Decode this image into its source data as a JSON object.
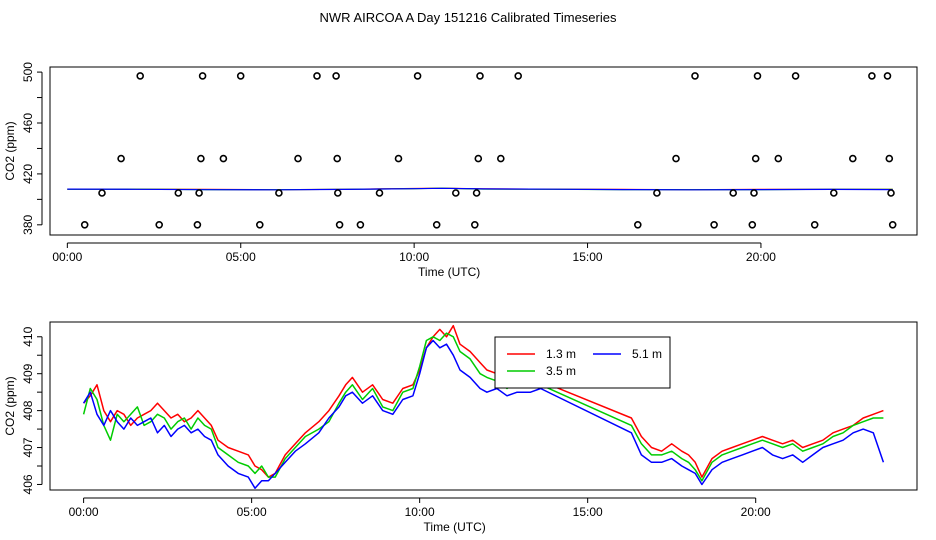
{
  "title": "NWR AIRCOA A  Day 151216  Calibrated Timeseries",
  "chart_data": [
    {
      "type": "scatter",
      "xlabel": "Time (UTC)",
      "ylabel": "CO2 (ppm)",
      "xlim": [
        -0.5,
        24.5
      ],
      "ylim": [
        372,
        504
      ],
      "x_ticks": [
        0,
        5,
        10,
        15,
        20
      ],
      "x_tick_labels": [
        "00:00",
        "05:00",
        "10:00",
        "15:00",
        "20:00"
      ],
      "y_ticks": [
        380,
        420,
        460,
        500
      ],
      "y_tick_labels": [
        "380",
        "420",
        "460",
        "500"
      ],
      "grid": false,
      "colors": {
        "1.3 m": "#ff0000",
        "3.5 m": "#00cc00",
        "5.1 m": "#0000ff",
        "points": "#000000"
      },
      "points": [
        {
          "x": 0.5,
          "y": 380
        },
        {
          "x": 1.0,
          "y": 405
        },
        {
          "x": 1.55,
          "y": 432
        },
        {
          "x": 2.1,
          "y": 497
        },
        {
          "x": 2.65,
          "y": 380
        },
        {
          "x": 3.2,
          "y": 405
        },
        {
          "x": 3.75,
          "y": 380
        },
        {
          "x": 3.8,
          "y": 405
        },
        {
          "x": 3.85,
          "y": 432
        },
        {
          "x": 3.9,
          "y": 497
        },
        {
          "x": 4.5,
          "y": 432
        },
        {
          "x": 5.0,
          "y": 497
        },
        {
          "x": 5.55,
          "y": 380
        },
        {
          "x": 6.1,
          "y": 405
        },
        {
          "x": 6.65,
          "y": 432
        },
        {
          "x": 7.2,
          "y": 497
        },
        {
          "x": 7.75,
          "y": 497
        },
        {
          "x": 7.78,
          "y": 432
        },
        {
          "x": 7.8,
          "y": 405
        },
        {
          "x": 7.85,
          "y": 380
        },
        {
          "x": 8.45,
          "y": 380
        },
        {
          "x": 9.0,
          "y": 405
        },
        {
          "x": 9.55,
          "y": 432
        },
        {
          "x": 10.1,
          "y": 497
        },
        {
          "x": 10.65,
          "y": 380
        },
        {
          "x": 11.2,
          "y": 405
        },
        {
          "x": 11.75,
          "y": 380
        },
        {
          "x": 11.8,
          "y": 405
        },
        {
          "x": 11.85,
          "y": 432
        },
        {
          "x": 11.9,
          "y": 497
        },
        {
          "x": 12.5,
          "y": 432
        },
        {
          "x": 13.0,
          "y": 497
        },
        {
          "x": 16.45,
          "y": 380
        },
        {
          "x": 17.0,
          "y": 405
        },
        {
          "x": 17.55,
          "y": 432
        },
        {
          "x": 18.1,
          "y": 497
        },
        {
          "x": 18.65,
          "y": 380
        },
        {
          "x": 19.2,
          "y": 405
        },
        {
          "x": 19.75,
          "y": 380
        },
        {
          "x": 19.8,
          "y": 405
        },
        {
          "x": 19.85,
          "y": 432
        },
        {
          "x": 19.9,
          "y": 497
        },
        {
          "x": 20.5,
          "y": 432
        },
        {
          "x": 21.0,
          "y": 497
        },
        {
          "x": 21.55,
          "y": 380
        },
        {
          "x": 22.1,
          "y": 405
        },
        {
          "x": 22.65,
          "y": 432
        },
        {
          "x": 23.2,
          "y": 497
        },
        {
          "x": 23.65,
          "y": 497
        },
        {
          "x": 23.7,
          "y": 432
        },
        {
          "x": 23.75,
          "y": 405
        },
        {
          "x": 23.8,
          "y": 380
        }
      ],
      "series": [
        {
          "name": "1.3 m",
          "x": [
            0,
            2,
            4,
            6,
            8,
            10,
            10.8,
            12,
            14,
            16,
            18,
            20,
            22,
            23.8
          ],
          "values": [
            408,
            408,
            407.8,
            407.6,
            407.9,
            408.5,
            408.8,
            408.2,
            408,
            407.8,
            407.6,
            407.8,
            407.9,
            407.8
          ]
        },
        {
          "name": "3.5 m",
          "x": [
            0,
            2,
            4,
            6,
            8,
            10,
            10.8,
            12,
            14,
            16,
            18,
            20,
            22,
            23.8
          ],
          "values": [
            407.9,
            408,
            407.7,
            407.6,
            407.9,
            408.4,
            408.8,
            408.1,
            407.9,
            407.7,
            407.6,
            407.7,
            407.9,
            407.8
          ]
        },
        {
          "name": "5.1 m",
          "x": [
            0,
            2,
            4,
            6,
            8,
            10,
            10.8,
            12,
            14,
            16,
            18,
            20,
            22,
            23.8
          ],
          "values": [
            408.1,
            407.9,
            407.6,
            407.5,
            407.8,
            408.4,
            408.7,
            408.2,
            408,
            407.7,
            407.5,
            407.7,
            407.8,
            407.7
          ]
        }
      ]
    },
    {
      "type": "line",
      "xlabel": "Time (UTC)",
      "ylabel": "CO2 (ppm)",
      "xlim": [
        -1,
        24.8
      ],
      "ylim": [
        405.85,
        410.4
      ],
      "x_ticks": [
        0,
        5,
        10,
        15,
        20
      ],
      "x_tick_labels": [
        "00:00",
        "05:00",
        "10:00",
        "15:00",
        "20:00"
      ],
      "y_ticks": [
        406,
        407,
        408,
        409,
        410
      ],
      "y_tick_labels": [
        "406",
        "407",
        "408",
        "409",
        "410"
      ],
      "grid": false,
      "legend": {
        "placement": "top-center",
        "entries": [
          "1.3 m",
          "3.5 m",
          "5.1 m"
        ]
      },
      "series": [
        {
          "name": "1.3 m",
          "color": "#ff0000",
          "x": [
            0,
            0.2,
            0.4,
            0.6,
            0.8,
            1.0,
            1.2,
            1.4,
            1.6,
            1.8,
            2.0,
            2.2,
            2.4,
            2.6,
            2.8,
            3.0,
            3.2,
            3.4,
            3.6,
            3.8,
            4.0,
            4.3,
            4.6,
            4.9,
            5.1,
            5.3,
            5.5,
            5.7,
            6.0,
            6.3,
            6.6,
            7.0,
            7.3,
            7.6,
            7.8,
            8.0,
            8.3,
            8.6,
            8.9,
            9.2,
            9.5,
            9.8,
            10.0,
            10.2,
            10.4,
            10.6,
            10.8,
            11.0,
            11.2,
            11.5,
            11.8,
            12.0,
            12.3,
            12.6,
            12.9,
            13.3,
            13.6,
            16.3,
            16.6,
            16.9,
            17.2,
            17.5,
            17.8,
            18.0,
            18.2,
            18.4,
            18.7,
            19.0,
            19.3,
            19.6,
            19.9,
            20.2,
            20.5,
            20.8,
            21.1,
            21.4,
            21.7,
            22.0,
            22.3,
            22.6,
            22.9,
            23.2,
            23.5,
            23.8
          ],
          "values": [
            408.2,
            408.4,
            408.7,
            408.0,
            407.7,
            408.0,
            407.9,
            407.6,
            407.8,
            407.9,
            408.0,
            408.2,
            408.0,
            407.8,
            407.9,
            407.7,
            407.8,
            408.0,
            407.8,
            407.6,
            407.2,
            407.0,
            406.9,
            406.8,
            406.5,
            406.4,
            406.2,
            406.3,
            406.8,
            407.1,
            407.4,
            407.7,
            408.0,
            408.4,
            408.7,
            408.9,
            408.5,
            408.7,
            408.3,
            408.2,
            408.6,
            408.7,
            409.1,
            409.7,
            410.0,
            410.2,
            410.0,
            410.3,
            409.8,
            409.6,
            409.3,
            409.1,
            409.0,
            408.8,
            408.9,
            408.8,
            408.8,
            407.8,
            407.3,
            407.0,
            406.9,
            407.1,
            406.9,
            406.8,
            406.6,
            406.2,
            406.7,
            406.9,
            407.0,
            407.1,
            407.2,
            407.3,
            407.2,
            407.1,
            407.2,
            407.0,
            407.1,
            407.2,
            407.4,
            407.5,
            407.6,
            407.8,
            407.9,
            408.0
          ]
        },
        {
          "name": "3.5 m",
          "color": "#00cc00",
          "x": [
            0,
            0.2,
            0.4,
            0.6,
            0.8,
            1.0,
            1.2,
            1.4,
            1.6,
            1.8,
            2.0,
            2.2,
            2.4,
            2.6,
            2.8,
            3.0,
            3.2,
            3.4,
            3.6,
            3.8,
            4.0,
            4.3,
            4.6,
            4.9,
            5.1,
            5.3,
            5.5,
            5.7,
            6.0,
            6.3,
            6.6,
            7.0,
            7.3,
            7.6,
            7.8,
            8.0,
            8.3,
            8.6,
            8.9,
            9.2,
            9.5,
            9.8,
            10.0,
            10.2,
            10.4,
            10.6,
            10.8,
            11.0,
            11.2,
            11.5,
            11.8,
            12.0,
            12.3,
            12.6,
            12.9,
            13.3,
            13.6,
            16.3,
            16.6,
            16.9,
            17.2,
            17.5,
            17.8,
            18.0,
            18.2,
            18.4,
            18.7,
            19.0,
            19.3,
            19.6,
            19.9,
            20.2,
            20.5,
            20.8,
            21.1,
            21.4,
            21.7,
            22.0,
            22.3,
            22.6,
            22.9,
            23.2,
            23.5,
            23.8
          ],
          "values": [
            407.9,
            408.6,
            408.3,
            407.6,
            407.2,
            407.9,
            407.7,
            407.9,
            408.1,
            407.6,
            407.7,
            407.9,
            407.8,
            407.5,
            407.7,
            407.8,
            407.5,
            407.8,
            407.6,
            407.5,
            407.0,
            406.8,
            406.6,
            406.5,
            406.3,
            406.5,
            406.2,
            406.2,
            406.7,
            407.0,
            407.3,
            407.5,
            407.7,
            408.2,
            408.5,
            408.7,
            408.3,
            408.6,
            408.1,
            408.0,
            408.5,
            408.6,
            409.2,
            409.9,
            410.0,
            409.9,
            410.1,
            410.0,
            409.6,
            409.4,
            409.0,
            408.9,
            408.8,
            408.6,
            408.8,
            408.7,
            408.7,
            407.6,
            407.1,
            406.8,
            406.8,
            406.9,
            406.7,
            406.6,
            406.4,
            406.1,
            406.6,
            406.8,
            406.9,
            407.0,
            407.1,
            407.2,
            407.1,
            407.0,
            407.1,
            406.9,
            407.0,
            407.1,
            407.3,
            407.4,
            407.6,
            407.7,
            407.8,
            407.8
          ]
        },
        {
          "name": "5.1 m",
          "color": "#0000ff",
          "x": [
            0,
            0.2,
            0.4,
            0.6,
            0.8,
            1.0,
            1.2,
            1.4,
            1.6,
            1.8,
            2.0,
            2.2,
            2.4,
            2.6,
            2.8,
            3.0,
            3.2,
            3.4,
            3.6,
            3.8,
            4.0,
            4.3,
            4.6,
            4.9,
            5.1,
            5.3,
            5.5,
            5.7,
            6.0,
            6.3,
            6.6,
            7.0,
            7.3,
            7.6,
            7.8,
            8.0,
            8.3,
            8.6,
            8.9,
            9.2,
            9.5,
            9.8,
            10.0,
            10.2,
            10.4,
            10.6,
            10.8,
            11.0,
            11.2,
            11.5,
            11.8,
            12.0,
            12.3,
            12.6,
            12.9,
            13.3,
            13.6,
            16.3,
            16.6,
            16.9,
            17.2,
            17.5,
            17.8,
            18.0,
            18.2,
            18.4,
            18.7,
            19.0,
            19.3,
            19.6,
            19.9,
            20.2,
            20.5,
            20.8,
            21.1,
            21.4,
            21.7,
            22.0,
            22.3,
            22.6,
            22.9,
            23.2,
            23.5,
            23.8
          ],
          "values": [
            408.2,
            408.5,
            407.9,
            407.6,
            408.0,
            407.7,
            407.5,
            407.8,
            407.6,
            407.7,
            407.8,
            407.4,
            407.6,
            407.3,
            407.5,
            407.6,
            407.4,
            407.5,
            407.3,
            407.2,
            406.8,
            406.5,
            406.3,
            406.2,
            405.9,
            406.1,
            406.1,
            406.3,
            406.6,
            406.9,
            407.1,
            407.4,
            407.8,
            408.1,
            408.4,
            408.5,
            408.2,
            408.4,
            408.0,
            407.9,
            408.3,
            408.4,
            409.0,
            409.7,
            409.9,
            409.7,
            409.8,
            409.5,
            409.1,
            408.9,
            408.6,
            408.5,
            408.6,
            408.4,
            408.5,
            408.5,
            408.6,
            407.4,
            406.8,
            406.6,
            406.6,
            406.7,
            406.5,
            406.4,
            406.3,
            406.0,
            406.4,
            406.6,
            406.7,
            406.8,
            406.9,
            407.0,
            406.8,
            406.7,
            406.8,
            406.6,
            406.8,
            407.0,
            407.1,
            407.2,
            407.4,
            407.5,
            407.4,
            406.6
          ]
        }
      ]
    }
  ]
}
